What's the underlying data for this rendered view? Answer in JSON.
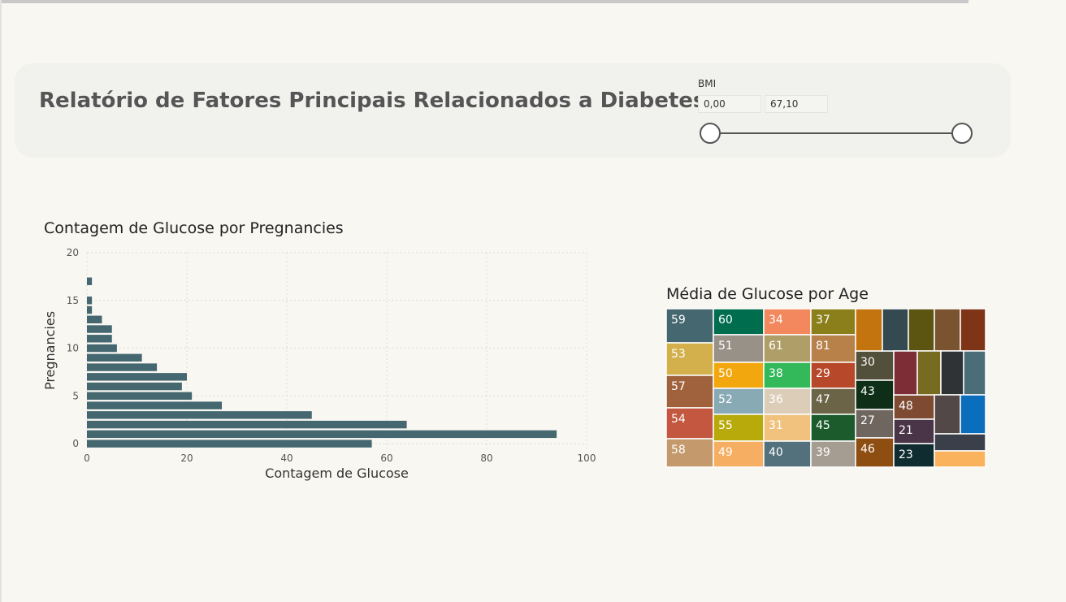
{
  "header": {
    "title": "Relatório de Fatores Principais Relacionados a Diabetes",
    "filter_label": "BMI",
    "min_value": "0,00",
    "max_value": "67,10",
    "slider_range": [
      0,
      67.1
    ]
  },
  "chart_data": [
    {
      "type": "bar",
      "orientation": "horizontal",
      "title": "Contagem de Glucose por Pregnancies",
      "xlabel": "Contagem de Glucose",
      "ylabel": "Pregnancies",
      "xlim": [
        0,
        100
      ],
      "ylim": [
        -0.5,
        20
      ],
      "xticks": [
        "0",
        "20",
        "40",
        "60",
        "80",
        "100"
      ],
      "yticks": [
        "0",
        "5",
        "10",
        "15",
        "20"
      ],
      "grid": true,
      "bar_color": "#456770",
      "categories": [
        0,
        1,
        2,
        3,
        4,
        5,
        6,
        7,
        8,
        9,
        10,
        11,
        12,
        13,
        14,
        15,
        17
      ],
      "values": [
        57,
        94,
        64,
        45,
        27,
        21,
        19,
        20,
        14,
        11,
        6,
        5,
        5,
        3,
        1,
        1,
        1
      ]
    },
    {
      "type": "treemap",
      "title": "Média de Glucose por Age",
      "tiles": [
        {
          "label": "59",
          "color": "#456770"
        },
        {
          "label": "53",
          "color": "#d3b04c"
        },
        {
          "label": "57",
          "color": "#a0623c"
        },
        {
          "label": "54",
          "color": "#c4573f"
        },
        {
          "label": "58",
          "color": "#c49a6c"
        },
        {
          "label": "60",
          "color": "#006e4e"
        },
        {
          "label": "51",
          "color": "#979188"
        },
        {
          "label": "50",
          "color": "#f3a70f"
        },
        {
          "label": "52",
          "color": "#87aab5"
        },
        {
          "label": "55",
          "color": "#b8aa0a"
        },
        {
          "label": "49",
          "color": "#f5ae62"
        },
        {
          "label": "34",
          "color": "#f3875e"
        },
        {
          "label": "61",
          "color": "#b09e68"
        },
        {
          "label": "38",
          "color": "#33b85a"
        },
        {
          "label": "36",
          "color": "#dccdb9"
        },
        {
          "label": "31",
          "color": "#f1c27e"
        },
        {
          "label": "40",
          "color": "#52717d"
        },
        {
          "label": "37",
          "color": "#8a7f1a"
        },
        {
          "label": "81",
          "color": "#b8814a"
        },
        {
          "label": "29",
          "color": "#b8482a"
        },
        {
          "label": "47",
          "color": "#6c6447"
        },
        {
          "label": "45",
          "color": "#1c5c2c"
        },
        {
          "label": "39",
          "color": "#a59c92"
        },
        {
          "label": "30",
          "color": "#524f3a"
        },
        {
          "label": "43",
          "color": "#0e2e17"
        },
        {
          "label": "27",
          "color": "#6f6660"
        },
        {
          "label": "46",
          "color": "#8e4e12"
        },
        {
          "label": "48",
          "color": "#7e4a32"
        },
        {
          "label": "21",
          "color": "#4a3448"
        },
        {
          "label": "23",
          "color": "#0f2c30"
        },
        {
          "label": "",
          "color": "#c4740e"
        },
        {
          "label": "",
          "color": "#354a50"
        },
        {
          "label": "",
          "color": "#5c5512"
        },
        {
          "label": "",
          "color": "#7a5331"
        },
        {
          "label": "",
          "color": "#7e3416"
        },
        {
          "label": "",
          "color": "#7c2d36"
        },
        {
          "label": "",
          "color": "#776a21"
        },
        {
          "label": "",
          "color": "#2f3335"
        },
        {
          "label": "",
          "color": "#4a6d78"
        },
        {
          "label": "",
          "color": "#524848"
        },
        {
          "label": "",
          "color": "#0b6ebd"
        },
        {
          "label": "",
          "color": "#3b3f4a"
        },
        {
          "label": "",
          "color": "#fbb25c"
        }
      ]
    }
  ]
}
